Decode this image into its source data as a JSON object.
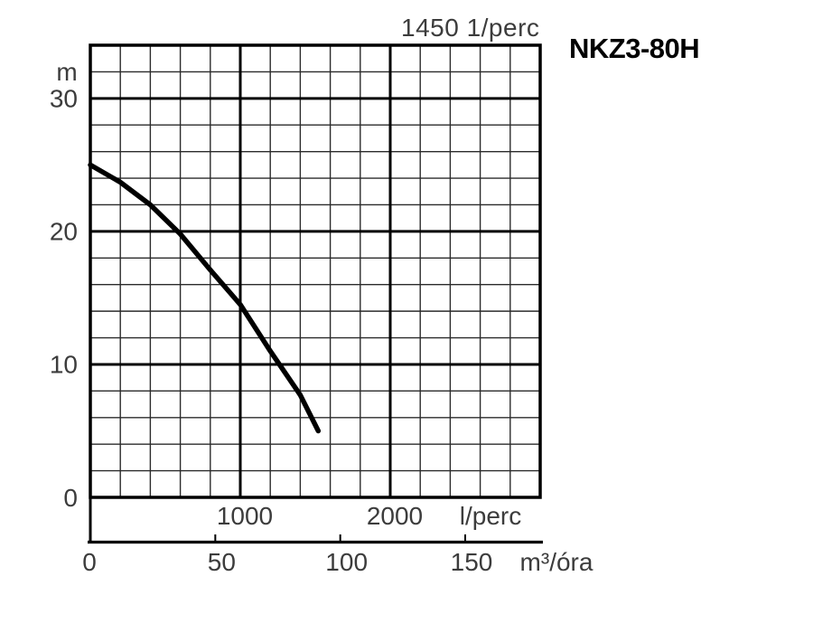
{
  "page": {
    "background": "#ffffff"
  },
  "chart_data": {
    "type": "line",
    "title": "NKZ3-80H",
    "annotation": "1450 1/perc",
    "x_axis_primary": {
      "label": "l/perc",
      "min": 0,
      "max": 3000,
      "major_ticks": [
        1000,
        2000
      ],
      "minor_step": 200
    },
    "x_axis_secondary": {
      "label": "m³/óra",
      "ticks": [
        0,
        50,
        100,
        150
      ]
    },
    "y_axis": {
      "label": "m",
      "min": 0,
      "max": 34,
      "major_ticks": [
        0,
        10,
        20,
        30
      ],
      "minor_step": 2
    },
    "grid": true,
    "legend": false,
    "series": [
      {
        "name": "head-flow-curve",
        "color": "#000000",
        "points": [
          [
            0,
            25.0
          ],
          [
            200,
            23.7
          ],
          [
            400,
            22.0
          ],
          [
            600,
            19.8
          ],
          [
            800,
            17.1
          ],
          [
            1000,
            14.5
          ],
          [
            1200,
            11.0
          ],
          [
            1400,
            7.7
          ],
          [
            1520,
            5.0
          ]
        ]
      }
    ],
    "colors": {
      "grid_minor": "#2b2b2b",
      "grid_major": "#000000",
      "border": "#000000",
      "curve": "#000000",
      "tick_label": "#3c3c3c",
      "title": "#000000"
    }
  }
}
